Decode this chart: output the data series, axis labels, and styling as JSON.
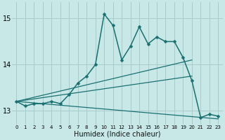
{
  "xlabel": "Humidex (Indice chaleur)",
  "xlim": [
    -0.5,
    23.5
  ],
  "ylim": [
    12.7,
    15.35
  ],
  "yticks": [
    13,
    14,
    15
  ],
  "xticks": [
    0,
    1,
    2,
    3,
    4,
    5,
    6,
    7,
    8,
    9,
    10,
    11,
    12,
    13,
    14,
    15,
    16,
    17,
    18,
    19,
    20,
    21,
    22,
    23
  ],
  "bg_color": "#c8e8e8",
  "grid_color": "#a8cccc",
  "line_color": "#1a7070",
  "main_series": {
    "x": [
      0,
      1,
      2,
      3,
      4,
      5,
      6,
      7,
      8,
      9,
      10,
      11,
      12,
      13,
      14,
      15,
      16,
      17,
      18,
      19,
      20,
      21,
      22,
      23
    ],
    "y": [
      13.2,
      13.1,
      13.15,
      13.15,
      13.2,
      13.15,
      13.35,
      13.6,
      13.75,
      14.0,
      15.1,
      14.85,
      14.1,
      14.4,
      14.82,
      14.45,
      14.6,
      14.5,
      14.5,
      14.15,
      13.65,
      12.85,
      12.92,
      12.88
    ],
    "markersize": 2.5,
    "linewidth": 1.1
  },
  "straight_lines": [
    {
      "x": [
        0,
        20
      ],
      "y": [
        13.2,
        14.1
      ]
    },
    {
      "x": [
        0,
        20
      ],
      "y": [
        13.2,
        13.75
      ]
    },
    {
      "x": [
        0,
        23
      ],
      "y": [
        13.2,
        12.82
      ]
    }
  ],
  "straight_linewidth": 0.9
}
